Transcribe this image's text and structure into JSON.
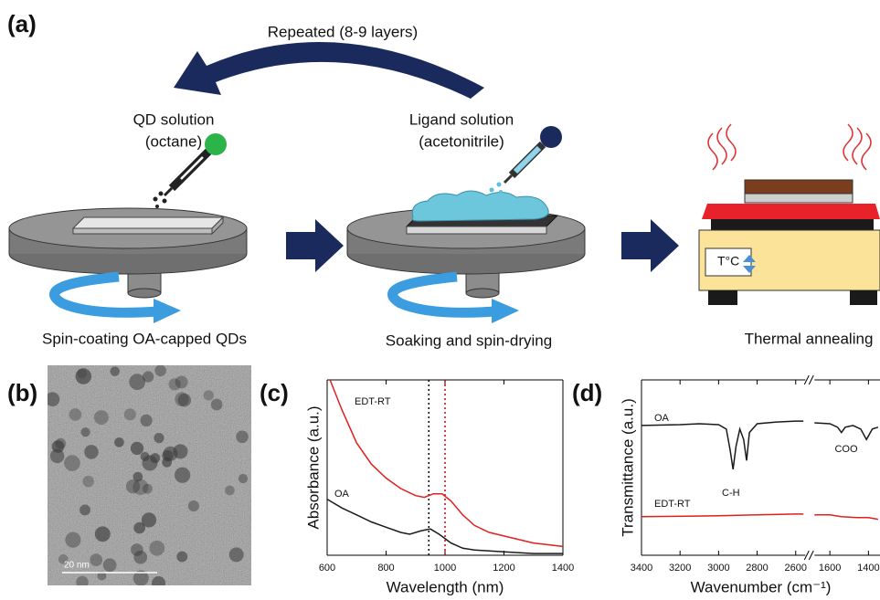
{
  "panel_labels": [
    "(a)",
    "(b)",
    "(c)",
    "(d)"
  ],
  "schematic": {
    "repeat_label": "Repeated (8-9 layers)",
    "qd_solution": [
      "QD solution",
      "(octane)"
    ],
    "ligand_solution": [
      "Ligand solution",
      "(acetonitrile)"
    ],
    "temperature_display": "T°C",
    "steps": [
      "Spin-coating OA-capped QDs",
      "Soaking and spin-drying",
      "Thermal annealing"
    ]
  },
  "tem_image": {
    "scale_bar": "20 nm"
  },
  "chart_data": [
    {
      "type": "line",
      "xlabel": "Wavelength (nm)",
      "ylabel": "Absorbance (a.u.)",
      "xlim": [
        600,
        1400
      ],
      "xticks": [
        600,
        800,
        1000,
        1200,
        1400
      ],
      "ylim": [
        0,
        1
      ],
      "annotations": [
        "EDT-RT",
        "OA"
      ],
      "reference_lines": [
        {
          "x": 945,
          "color": "#000000"
        },
        {
          "x": 1000,
          "color": "#cc0000"
        }
      ],
      "series": [
        {
          "name": "EDT-RT",
          "color": "#e0201e",
          "x": [
            610,
            650,
            700,
            750,
            800,
            850,
            900,
            930,
            960,
            990,
            1020,
            1060,
            1100,
            1150,
            1200,
            1300,
            1400
          ],
          "values": [
            1.0,
            0.83,
            0.64,
            0.52,
            0.44,
            0.38,
            0.34,
            0.33,
            0.35,
            0.35,
            0.31,
            0.23,
            0.17,
            0.13,
            0.11,
            0.07,
            0.05
          ]
        },
        {
          "name": "OA",
          "color": "#1a1a1a",
          "x": [
            600,
            650,
            700,
            750,
            800,
            850,
            880,
            920,
            950,
            980,
            1020,
            1060,
            1100,
            1200,
            1300,
            1400
          ],
          "values": [
            0.32,
            0.27,
            0.23,
            0.19,
            0.16,
            0.13,
            0.12,
            0.14,
            0.15,
            0.12,
            0.07,
            0.04,
            0.03,
            0.02,
            0.01,
            0.01
          ]
        }
      ]
    },
    {
      "type": "line",
      "xlabel": "Wavenumber (cm⁻¹)",
      "ylabel": "Transmittance (a.u.)",
      "x_segments": [
        {
          "xlim": [
            3400,
            2550
          ],
          "xticks": [
            3400,
            3200,
            3000,
            2800,
            2600
          ]
        },
        {
          "xlim": [
            1680,
            1340
          ],
          "xticks": [
            1600,
            1400
          ]
        }
      ],
      "ylim": [
        0,
        1
      ],
      "annotations": [
        "OA",
        "EDT-RT",
        "C-H",
        "COO"
      ],
      "series": [
        {
          "name": "OA",
          "color": "#1a1a1a",
          "x": [
            3400,
            3200,
            3100,
            3000,
            2960,
            2940,
            2925,
            2910,
            2890,
            2870,
            2855,
            2840,
            2800,
            2700,
            2600,
            2560,
            null,
            1680,
            1600,
            1560,
            1540,
            1520,
            1480,
            1440,
            1410,
            1380,
            1350
          ],
          "values": [
            0.74,
            0.745,
            0.75,
            0.745,
            0.72,
            0.6,
            0.49,
            0.62,
            0.72,
            0.66,
            0.54,
            0.7,
            0.75,
            0.76,
            0.765,
            0.765,
            null,
            0.755,
            0.75,
            0.73,
            0.7,
            0.73,
            0.74,
            0.72,
            0.66,
            0.72,
            0.73
          ]
        },
        {
          "name": "EDT-RT",
          "color": "#e0201e",
          "x": [
            3400,
            3000,
            2800,
            2600,
            2560,
            null,
            1680,
            1600,
            1540,
            1460,
            1400,
            1350
          ],
          "values": [
            0.22,
            0.225,
            0.23,
            0.235,
            0.235,
            null,
            0.23,
            0.23,
            0.22,
            0.215,
            0.215,
            0.205
          ]
        }
      ]
    }
  ]
}
